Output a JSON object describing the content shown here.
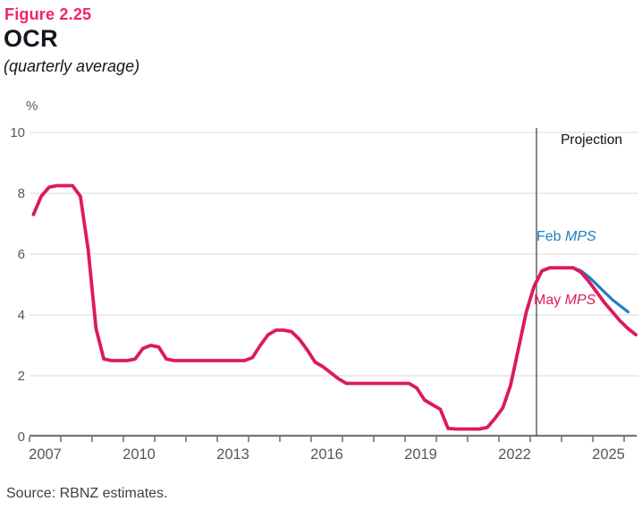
{
  "header": {
    "figure_label": "Figure 2.25",
    "title": "OCR",
    "subtitle": "(quarterly average)"
  },
  "footer": {
    "source": "Source: RBNZ estimates."
  },
  "chart_data": {
    "type": "line",
    "title": "OCR",
    "subtitle": "(quarterly average)",
    "ylabel": "%",
    "ylim": [
      0,
      10
    ],
    "yticks": [
      0,
      2,
      4,
      6,
      8,
      10
    ],
    "xrange": [
      2007,
      2026
    ],
    "xtick_labels": [
      2007,
      2010,
      2013,
      2016,
      2019,
      2022,
      2025
    ],
    "grid": "horizontal",
    "projection_x": 2023.2,
    "annotations": {
      "projection": "Projection"
    },
    "series_labels": {
      "feb": {
        "prefix": "Feb ",
        "italic": "MPS"
      },
      "may": {
        "prefix": "May ",
        "italic": "MPS"
      }
    },
    "colors": {
      "accent_pink": "#DC1A5E",
      "accent_blue": "#1F7EC2",
      "figure_label_pink": "#F0246C",
      "grid": "#D9D9D9",
      "axis": "#757575",
      "axis_text": "#575757",
      "projection_line": "#3C3C3C",
      "title_text": "#15151F"
    },
    "series": [
      {
        "name": "Feb MPS",
        "key": "feb-mps",
        "color": "#1F7EC2",
        "width": 3.2,
        "start": 2023.375,
        "step": 0.25,
        "values": [
          5.45,
          5.55,
          5.55,
          5.55,
          5.55,
          5.45,
          5.25,
          5.0,
          4.75,
          4.5,
          4.3,
          4.1
        ]
      },
      {
        "name": "May MPS",
        "key": "may-mps",
        "color": "#DC1A5E",
        "width": 3.8,
        "start": 2007.125,
        "step": 0.25,
        "values": [
          7.3,
          7.9,
          8.2,
          8.25,
          8.25,
          8.25,
          7.9,
          6.15,
          3.55,
          2.55,
          2.5,
          2.5,
          2.5,
          2.55,
          2.9,
          3.0,
          2.95,
          2.55,
          2.5,
          2.5,
          2.5,
          2.5,
          2.5,
          2.5,
          2.5,
          2.5,
          2.5,
          2.5,
          2.6,
          3.0,
          3.35,
          3.5,
          3.5,
          3.45,
          3.2,
          2.85,
          2.45,
          2.3,
          2.1,
          1.9,
          1.75,
          1.75,
          1.75,
          1.75,
          1.75,
          1.75,
          1.75,
          1.75,
          1.75,
          1.6,
          1.2,
          1.05,
          0.9,
          0.27,
          0.25,
          0.25,
          0.25,
          0.25,
          0.3,
          0.6,
          0.95,
          1.7,
          2.9,
          4.1,
          4.95,
          5.45,
          5.55,
          5.55,
          5.55,
          5.55,
          5.4,
          5.1,
          4.75,
          4.4,
          4.1,
          3.8,
          3.55,
          3.35
        ]
      }
    ]
  }
}
